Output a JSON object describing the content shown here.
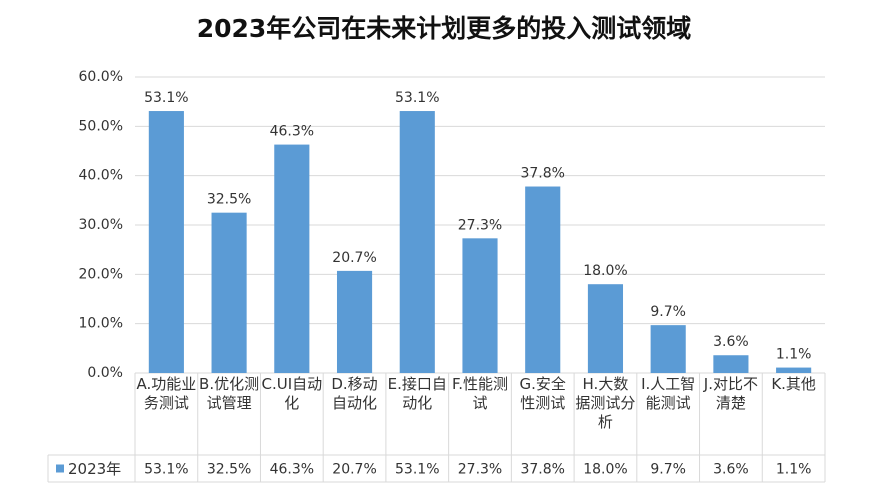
{
  "chart_data": {
    "type": "bar",
    "title": "2023年公司在未来计划更多的投入测试领域",
    "categories": [
      "A.功能业务测试",
      "B.优化测试管理",
      "C.UI自动化",
      "D.移动自动化",
      "E.接口自动化",
      "F.性能测试",
      "G.安全性测试",
      "H.大数据测试分析",
      "I.人工智能测试",
      "J.对比不清楚",
      "K.其他"
    ],
    "series": [
      {
        "name": "2023年",
        "color": "#5b9bd5",
        "values": [
          53.1,
          32.5,
          46.3,
          20.7,
          53.1,
          27.3,
          37.8,
          18.0,
          9.7,
          3.6,
          1.1
        ],
        "value_labels": [
          "53.1%",
          "32.5%",
          "46.3%",
          "20.7%",
          "53.1%",
          "27.3%",
          "37.8%",
          "18.0%",
          "9.7%",
          "3.6%",
          "1.1%"
        ]
      }
    ],
    "ylim": [
      0,
      60
    ],
    "yticks": [
      {
        "value": 0,
        "label": "0.0%"
      },
      {
        "value": 10,
        "label": "10.0%"
      },
      {
        "value": 20,
        "label": "20.0%"
      },
      {
        "value": 30,
        "label": "30.0%"
      },
      {
        "value": 40,
        "label": "40.0%"
      },
      {
        "value": 50,
        "label": "50.0%"
      },
      {
        "value": 60,
        "label": "60.0%"
      }
    ],
    "grid": true
  }
}
